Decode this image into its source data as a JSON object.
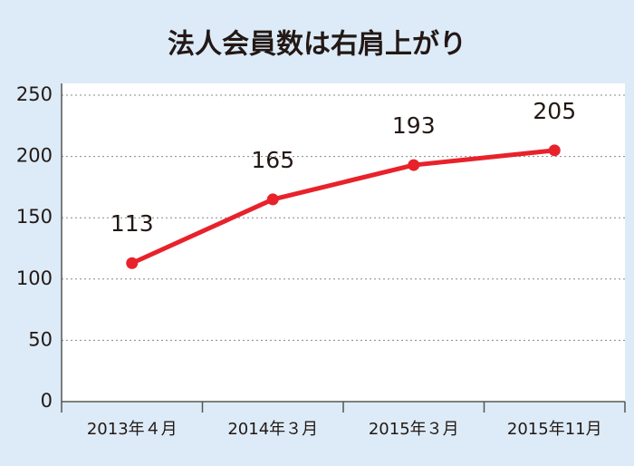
{
  "chart_data": {
    "type": "line",
    "title": "法人会員数は右肩上がり",
    "categories": [
      "2013年４月",
      "2014年３月",
      "2015年３月",
      "2015年11月"
    ],
    "values": [
      113,
      165,
      193,
      205
    ],
    "color": "#e8222b",
    "ylim": [
      0,
      250
    ],
    "yticks": [
      0,
      50,
      100,
      150,
      200,
      250
    ],
    "grid": true
  }
}
